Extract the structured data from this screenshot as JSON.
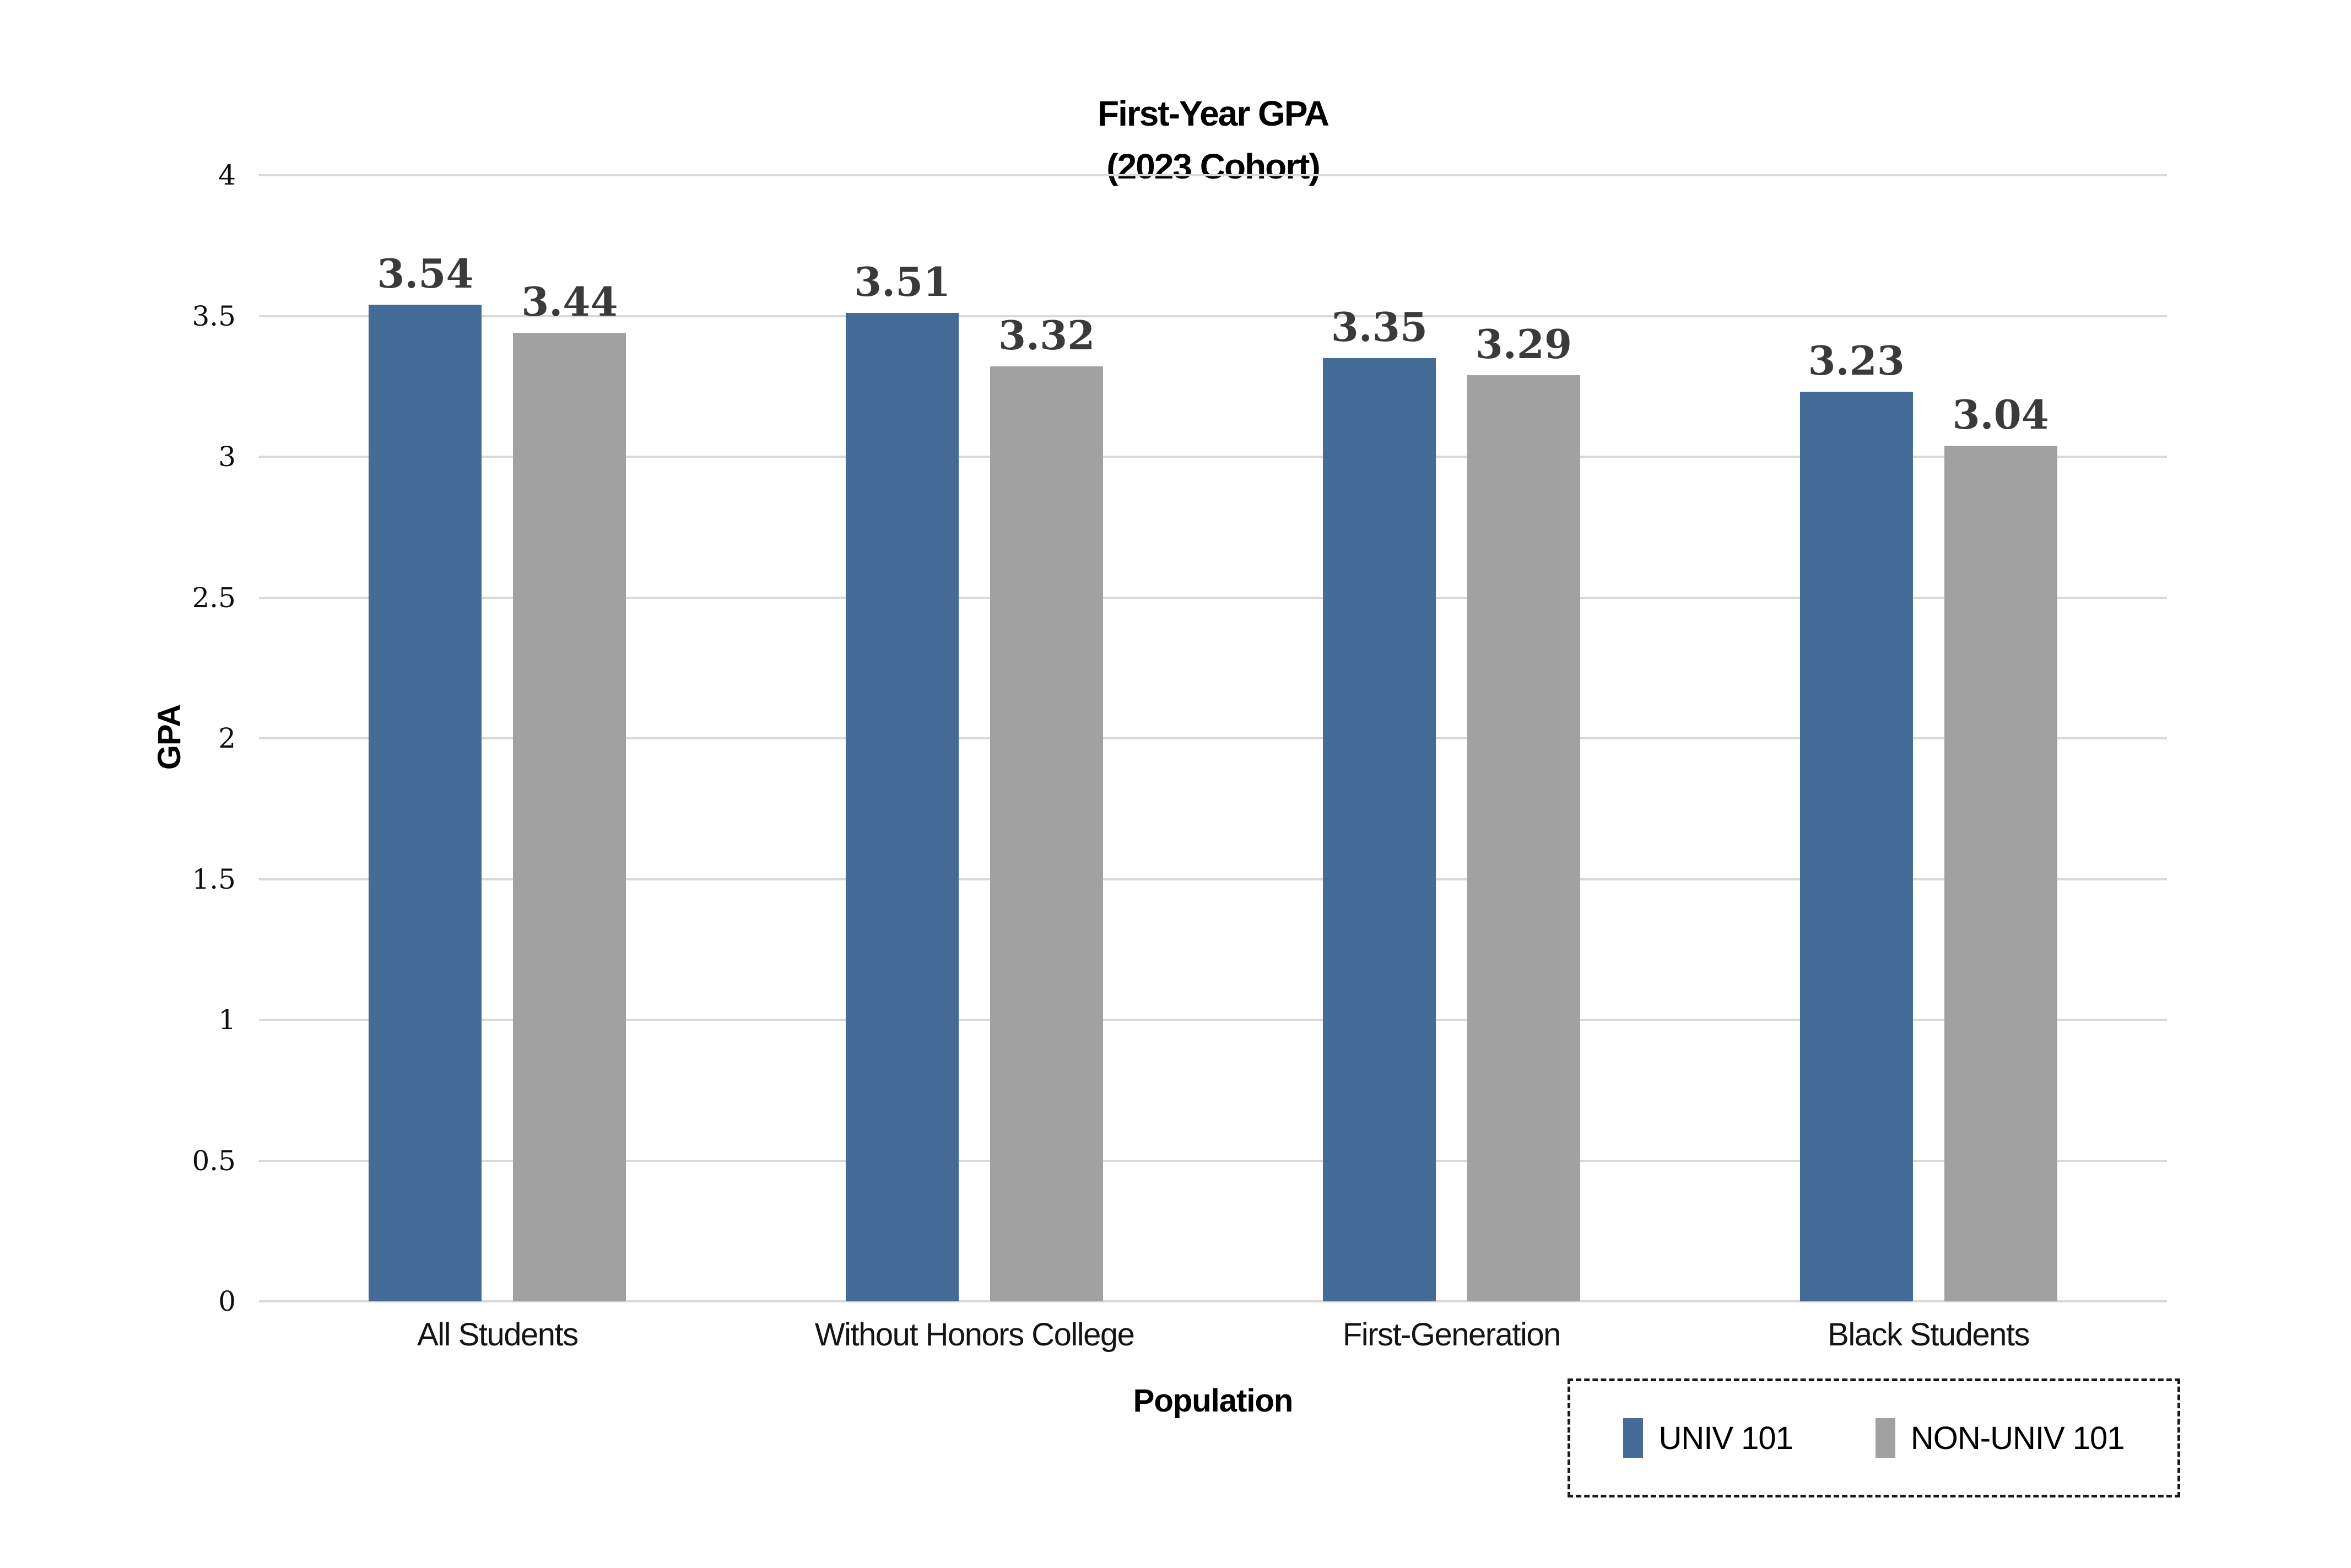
{
  "title": {
    "line1": "First-Year GPA",
    "line2": "(2023 Cohort)"
  },
  "chart_data": {
    "type": "bar",
    "categories": [
      "All Students",
      "Without Honors College",
      "First-Generation",
      "Black Students"
    ],
    "series": [
      {
        "name": "UNIV 101",
        "color": "#456C96",
        "values": [
          3.54,
          3.51,
          3.35,
          3.23
        ]
      },
      {
        "name": "NON-UNIV 101",
        "color": "#A1A1A1",
        "values": [
          3.44,
          3.32,
          3.29,
          3.04
        ]
      }
    ],
    "title": "First-Year GPA (2023 Cohort)",
    "xlabel": "Population",
    "ylabel": "GPA",
    "ylim": [
      0,
      4
    ],
    "ytick_step": 0.5,
    "yticks": [
      "0",
      "0.5",
      "1",
      "1.5",
      "2",
      "2.5",
      "3",
      "3.5",
      "4"
    ],
    "grid": true,
    "legend_position": "bottom-right",
    "value_label_color": "#3A3A3A",
    "gridline_color": "#D9D9D9"
  }
}
